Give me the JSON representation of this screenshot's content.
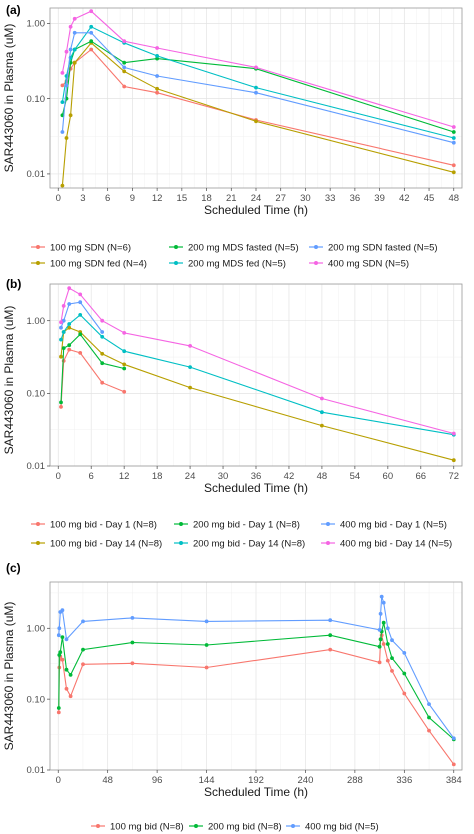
{
  "chart_data": [
    {
      "type": "line",
      "panel_label": "(a)",
      "xlabel": "Scheduled Time (h)",
      "ylabel": "SAR443060 in Plasma (uM)",
      "xlim": [
        -1,
        49
      ],
      "xticks": [
        0,
        3,
        6,
        9,
        12,
        15,
        18,
        21,
        24,
        27,
        30,
        33,
        36,
        39,
        42,
        45,
        48
      ],
      "ylim": [
        0.0065,
        1.6
      ],
      "yscale": "log",
      "yticks": [
        0.01,
        0.1,
        1.0
      ],
      "ytick_labels": [
        "0.01",
        "0.10",
        "1.00"
      ],
      "grid": true,
      "legend_position": "bottom",
      "series": [
        {
          "name": "100 mg SDN (N=6)",
          "color": "#F8766D",
          "x": [
            0.5,
            1,
            1.5,
            2,
            4,
            8,
            12,
            24,
            48
          ],
          "y": [
            0.15,
            0.17,
            0.25,
            0.3,
            0.45,
            0.145,
            0.12,
            0.052,
            0.013
          ]
        },
        {
          "name": "100 mg SDN fed (N=4)",
          "color": "#B79F00",
          "x": [
            0.5,
            1,
            1.5,
            2,
            4,
            8,
            12,
            24,
            48
          ],
          "y": [
            0.007,
            0.03,
            0.06,
            0.3,
            0.55,
            0.23,
            0.135,
            0.05,
            0.0105
          ]
        },
        {
          "name": "200 mg MDS fasted (N=5)",
          "color": "#00BA38",
          "x": [
            0.5,
            1,
            1.5,
            2,
            4,
            8,
            12,
            24,
            48
          ],
          "y": [
            0.06,
            0.1,
            0.3,
            0.45,
            0.58,
            0.3,
            0.34,
            0.25,
            0.036
          ]
        },
        {
          "name": "200 mg MDS fed (N=5)",
          "color": "#00BFC4",
          "x": [
            0.5,
            1,
            1.5,
            2,
            4,
            8,
            12,
            24,
            48
          ],
          "y": [
            0.09,
            0.2,
            0.35,
            0.45,
            0.9,
            0.55,
            0.37,
            0.14,
            0.03
          ]
        },
        {
          "name": "200 mg SDN fasted (N=5)",
          "color": "#619CFF",
          "x": [
            0.5,
            1,
            1.5,
            2,
            4,
            8,
            12,
            24,
            48
          ],
          "y": [
            0.036,
            0.15,
            0.45,
            0.75,
            0.75,
            0.26,
            0.2,
            0.12,
            0.026
          ]
        },
        {
          "name": "400 mg SDN (N=5)",
          "color": "#F564E3",
          "x": [
            0.5,
            1,
            1.5,
            2,
            4,
            8,
            12,
            24,
            48
          ],
          "y": [
            0.22,
            0.42,
            0.9,
            1.15,
            1.45,
            0.58,
            0.47,
            0.26,
            0.042
          ]
        }
      ]
    },
    {
      "type": "line",
      "panel_label": "(b)",
      "xlabel": "Scheduled Time (h)",
      "ylabel": "SAR443060 in Plasma (uM)",
      "xlim": [
        -1.5,
        73.5
      ],
      "xticks": [
        0,
        6,
        12,
        18,
        24,
        30,
        36,
        42,
        48,
        54,
        60,
        66,
        72
      ],
      "ylim": [
        0.01,
        3.2
      ],
      "yscale": "log",
      "yticks": [
        0.01,
        0.1,
        1.0
      ],
      "ytick_labels": [
        "0.01",
        "0.10",
        "1.00"
      ],
      "grid": true,
      "legend_position": "bottom",
      "series": [
        {
          "name": "100 mg bid - Day 1 (N=8)",
          "color": "#F8766D",
          "x": [
            0.5,
            1,
            2,
            4,
            8,
            12
          ],
          "y": [
            0.065,
            0.28,
            0.4,
            0.36,
            0.14,
            0.105
          ]
        },
        {
          "name": "100 mg bid - Day 14 (N=8)",
          "color": "#B79F00",
          "x": [
            0.5,
            1,
            2,
            4,
            8,
            12,
            24,
            48,
            72
          ],
          "y": [
            0.32,
            0.7,
            0.8,
            0.7,
            0.35,
            0.25,
            0.12,
            0.036,
            0.012
          ]
        },
        {
          "name": "200 mg bid - Day 1 (N=8)",
          "color": "#00BA38",
          "x": [
            0.5,
            1,
            2,
            4,
            8,
            12
          ],
          "y": [
            0.075,
            0.42,
            0.46,
            0.65,
            0.26,
            0.22
          ]
        },
        {
          "name": "200 mg bid - Day 14 (N=8)",
          "color": "#00BFC4",
          "x": [
            0.5,
            1,
            2,
            4,
            8,
            12,
            24,
            48,
            72
          ],
          "y": [
            0.55,
            0.7,
            0.9,
            1.2,
            0.6,
            0.38,
            0.23,
            0.055,
            0.027
          ]
        },
        {
          "name": "400 mg bid - Day 1 (N=5)",
          "color": "#619CFF",
          "x": [
            0.5,
            1,
            2,
            4,
            8
          ],
          "y": [
            0.8,
            1.0,
            1.7,
            1.8,
            0.7
          ]
        },
        {
          "name": "400 mg bid - Day 14 (N=5)",
          "color": "#F564E3",
          "x": [
            0.5,
            1,
            2,
            4,
            8,
            12,
            24,
            48,
            72
          ],
          "y": [
            0.95,
            1.6,
            2.8,
            2.3,
            1.0,
            0.68,
            0.45,
            0.085,
            0.028
          ]
        }
      ]
    },
    {
      "type": "line",
      "panel_label": "(c)",
      "xlabel": "Scheduled Time (h)",
      "ylabel": "SAR443060 in Plasma (uM)",
      "xlim": [
        -8,
        392
      ],
      "xticks": [
        0,
        48,
        96,
        144,
        192,
        240,
        288,
        336,
        384
      ],
      "ylim": [
        0.01,
        4.5
      ],
      "yscale": "log",
      "yticks": [
        0.01,
        0.1,
        1.0
      ],
      "ytick_labels": [
        "0.01",
        "0.10",
        "1.00"
      ],
      "grid": true,
      "legend_position": "bottom",
      "series": [
        {
          "name": "100 mg bid (N=8)",
          "color": "#F8766D",
          "x": [
            0.5,
            1,
            2,
            4,
            8,
            12,
            24,
            72,
            144,
            264,
            312,
            313,
            314,
            316,
            320,
            324,
            336,
            360,
            384
          ],
          "y": [
            0.065,
            0.28,
            0.4,
            0.36,
            0.14,
            0.11,
            0.31,
            0.32,
            0.28,
            0.5,
            0.33,
            0.7,
            0.8,
            0.6,
            0.35,
            0.25,
            0.12,
            0.036,
            0.012
          ]
        },
        {
          "name": "200 mg bid (N=8)",
          "color": "#00BA38",
          "x": [
            0.5,
            1,
            2,
            4,
            8,
            12,
            24,
            72,
            144,
            264,
            312,
            313,
            314,
            316,
            320,
            324,
            336,
            360,
            384
          ],
          "y": [
            0.075,
            0.42,
            0.46,
            0.75,
            0.26,
            0.22,
            0.5,
            0.63,
            0.58,
            0.8,
            0.55,
            0.7,
            0.9,
            1.2,
            0.6,
            0.38,
            0.23,
            0.055,
            0.027
          ]
        },
        {
          "name": "400 mg bid (N=5)",
          "color": "#619CFF",
          "x": [
            0.5,
            1,
            2,
            4,
            8,
            24,
            72,
            144,
            264,
            312,
            313,
            314,
            316,
            320,
            324,
            336,
            360,
            384
          ],
          "y": [
            0.8,
            1.0,
            1.7,
            1.8,
            0.7,
            1.25,
            1.4,
            1.25,
            1.3,
            0.95,
            1.6,
            2.8,
            2.3,
            1.0,
            0.68,
            0.45,
            0.085,
            0.028
          ]
        }
      ]
    }
  ]
}
